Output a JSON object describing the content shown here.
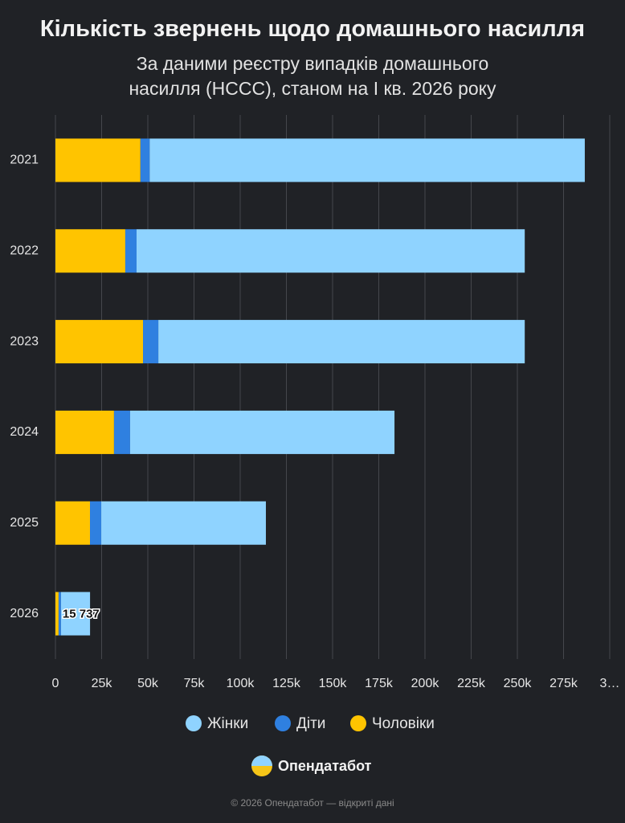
{
  "chart_data": {
    "type": "stacked_bar_horizontal",
    "title": "Кількість звернень щодо домашнього насилля",
    "subtitle": "За даними реєстру випадків домашнього насилля (НССС), станом на І кв. 2026 року",
    "categories": [
      "2021",
      "2022",
      "2023",
      "2024",
      "2025",
      "2026"
    ],
    "series": [
      {
        "name": "Жінки",
        "color": "#8fd3ff",
        "values": [
          235500,
          210100,
          198300,
          143100,
          89100,
          15737
        ],
        "value_labels": [
          null,
          null,
          null,
          null,
          null,
          "15 737"
        ]
      },
      {
        "name": "Діти",
        "color": "#2f80e0",
        "values": [
          5000,
          6100,
          8300,
          8700,
          6100,
          1300
        ]
      },
      {
        "name": "Чоловіки",
        "color": "#ffc400",
        "values": [
          46000,
          37800,
          47400,
          31700,
          18700,
          1700
        ]
      }
    ],
    "xlim": [
      0,
      300000
    ],
    "xticks": [
      0,
      {
        "value": 25000,
        "label": "25k"
      },
      {
        "value": 50000,
        "label": "50k"
      },
      {
        "value": 75000,
        "label": "75k"
      },
      {
        "value": 100000,
        "label": "100k"
      },
      {
        "value": 125000,
        "label": "125k"
      },
      {
        "value": 150000,
        "label": "150k"
      },
      {
        "value": 175000,
        "label": "175k"
      },
      {
        "value": 200000,
        "label": "200k"
      },
      {
        "value": 225000,
        "label": "225k"
      },
      {
        "value": 250000,
        "label": "250k"
      },
      {
        "value": 275000,
        "label": "275k"
      },
      {
        "value": 300000,
        "label": "3…"
      }
    ],
    "grid": true,
    "legend": "bottom"
  },
  "brand": "Опендатабот",
  "footer": "© 2026 Опендатабот — відкриті дані"
}
